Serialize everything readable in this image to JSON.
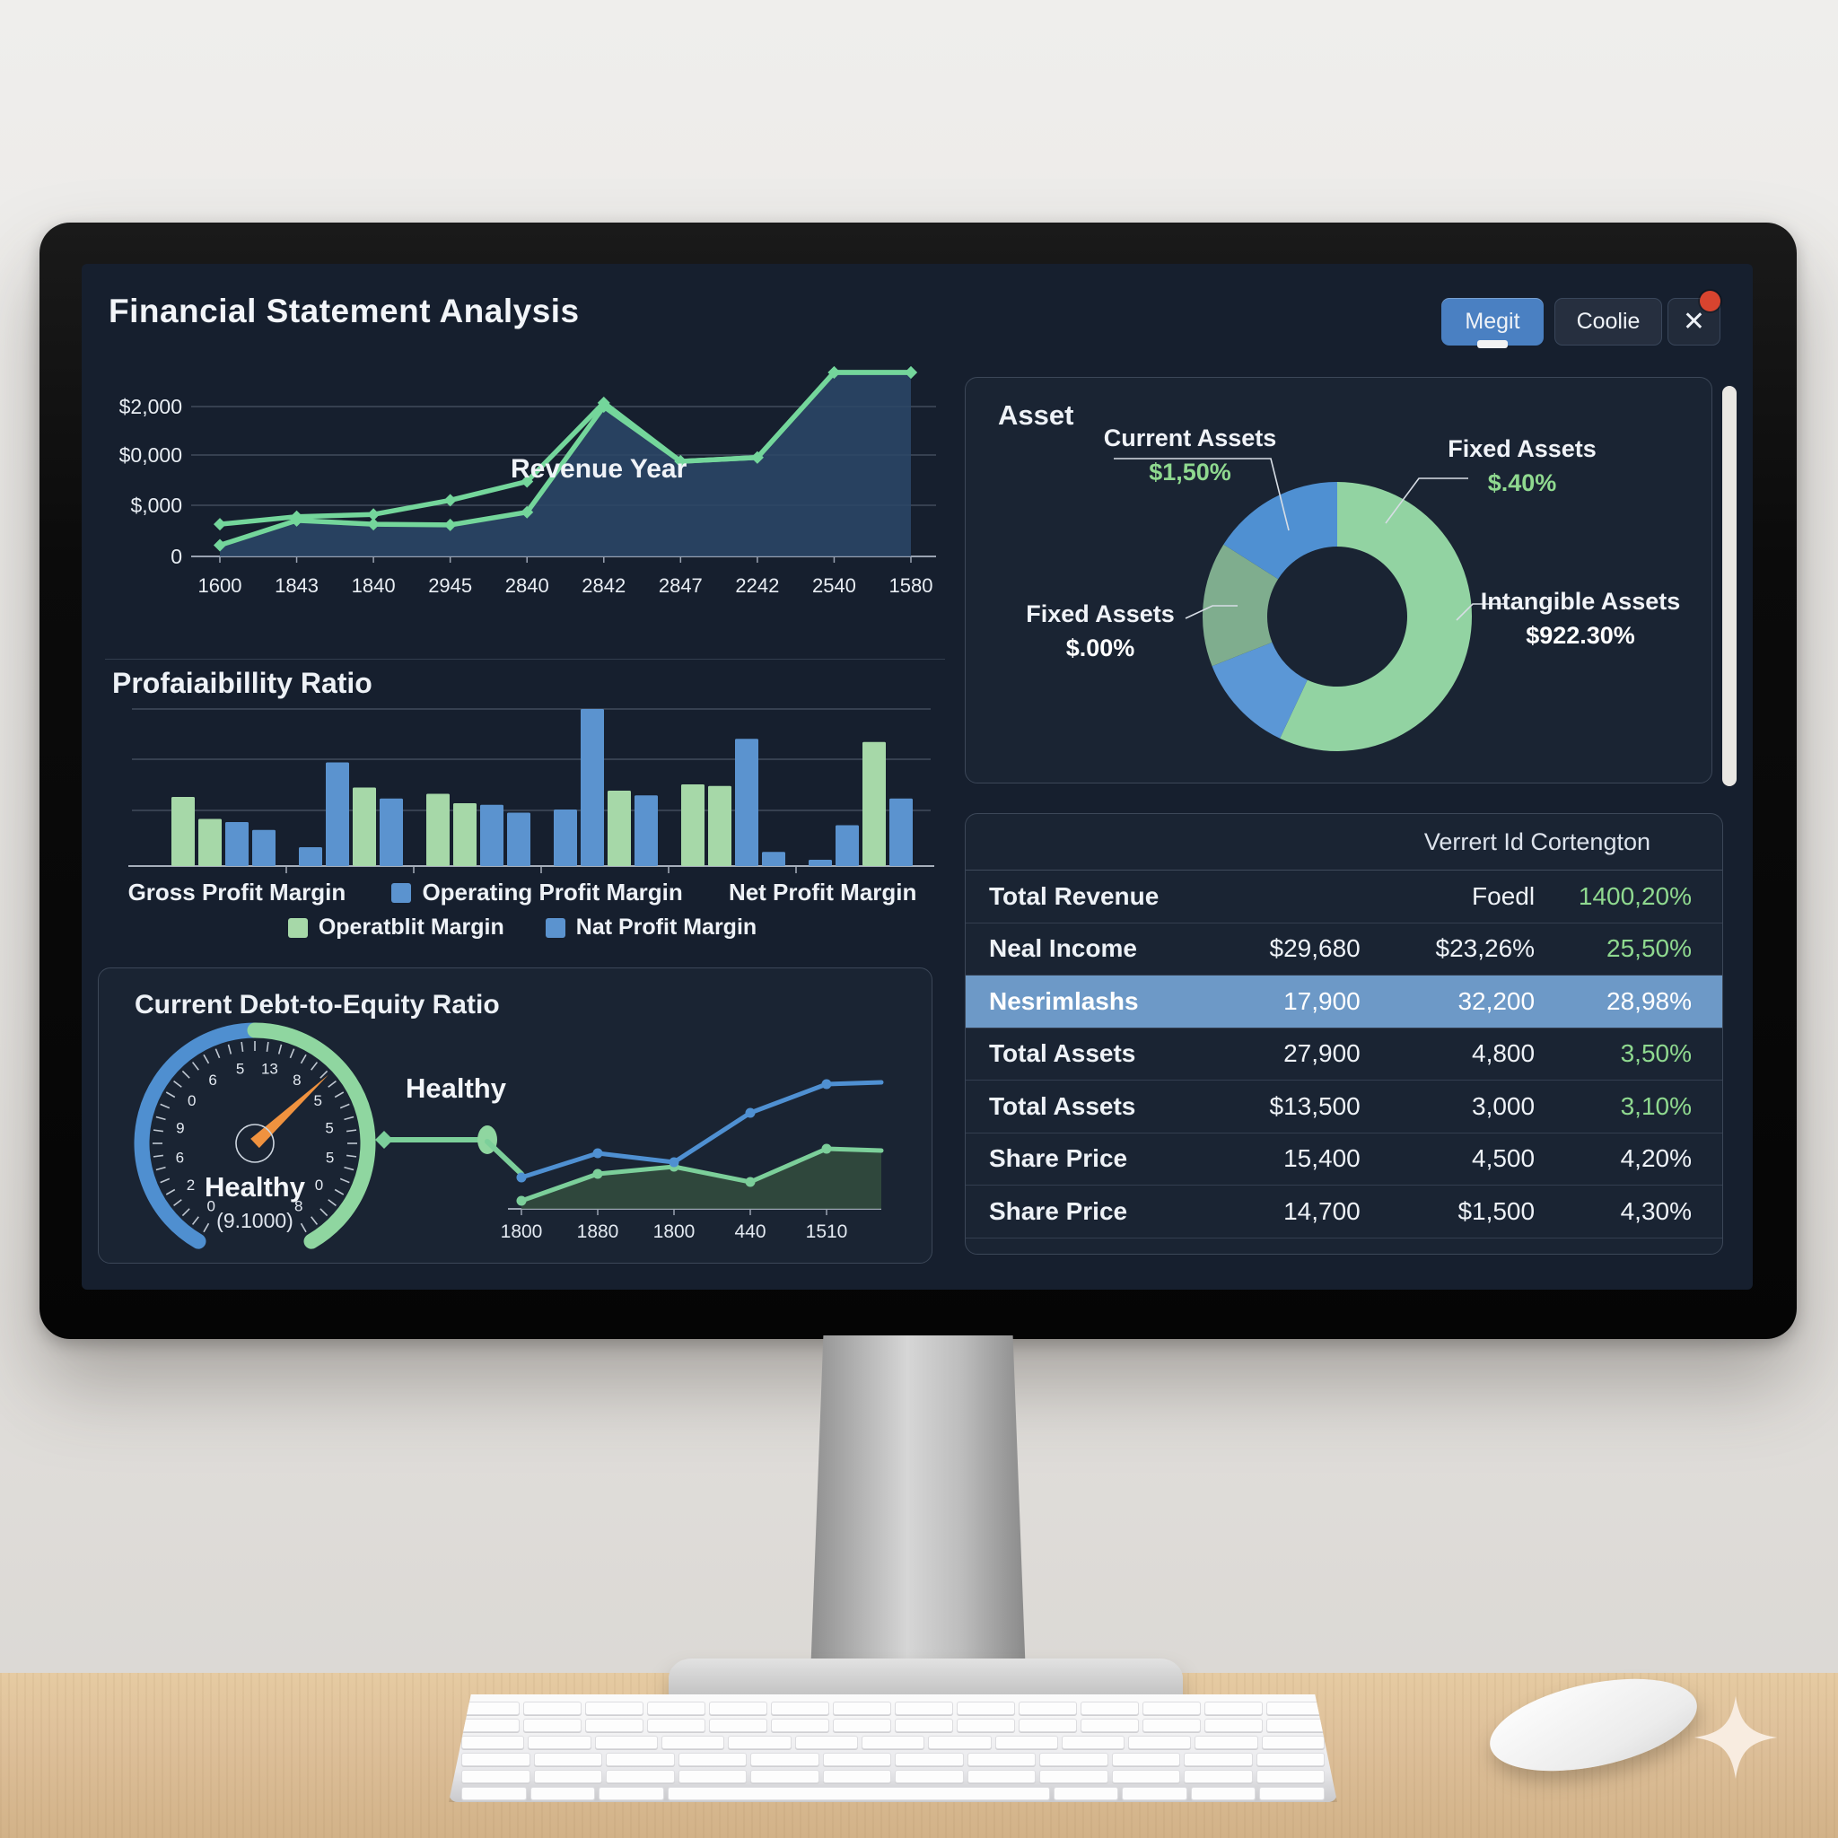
{
  "window": {
    "title": "Financial Statement Analysis"
  },
  "toolbar": {
    "buttons": [
      {
        "label": "Megit",
        "active": true
      },
      {
        "label": "Coolie",
        "active": false
      }
    ],
    "close_label": "✕"
  },
  "chart_data": [
    {
      "id": "revenue",
      "type": "area",
      "title": "Revenue Year",
      "categories": [
        "1600",
        "1843",
        "1840",
        "2945",
        "2840",
        "2842",
        "2847",
        "2242",
        "2540",
        "1580"
      ],
      "y_ticks": [
        {
          "label": "$2,000",
          "value": 2000
        },
        {
          "label": "$0,000",
          "value": 1333
        },
        {
          "label": "$,000",
          "value": 667
        },
        {
          "label": "0",
          "value": 0
        }
      ],
      "ylim": [
        0,
        2700
      ],
      "grid": true,
      "legend_position": "none",
      "series": [
        {
          "name": "revenue-upper-line",
          "color": "#74d69b",
          "values": [
            430,
            530,
            560,
            750,
            1000,
            2050,
            1270,
            1320,
            2620,
            2550
          ]
        },
        {
          "name": "revenue-lower-area",
          "color": "#74d69b",
          "area_fill": "#2c4868",
          "values": [
            150,
            480,
            430,
            420,
            590,
            2000,
            1270,
            1320,
            2620,
            2550
          ]
        }
      ]
    },
    {
      "id": "profitability",
      "type": "bar",
      "title": "Profaiaibillity Ratio",
      "ylim": [
        0,
        100
      ],
      "grid": true,
      "axis_labels": [
        {
          "label": "Gross Profit Margin",
          "swatch": null
        },
        {
          "label": "Operating Profit Margin",
          "swatch": "#5b93cf"
        },
        {
          "label": "Net Profit Margin",
          "swatch": null
        }
      ],
      "legend": [
        {
          "label": "Operatblit Margin",
          "swatch": "#a6d8a8"
        },
        {
          "label": "Nat Profit Margin",
          "swatch": "#5b93cf"
        }
      ],
      "colors": {
        "green": "#a6d8a8",
        "blue": "#5b93cf"
      },
      "groups": [
        [
          {
            "color": "green",
            "value": 44
          },
          {
            "color": "green",
            "value": 30
          },
          {
            "color": "blue",
            "value": 28
          },
          {
            "color": "blue",
            "value": 23
          }
        ],
        [
          {
            "color": "blue",
            "value": 12
          },
          {
            "color": "blue",
            "value": 66
          },
          {
            "color": "green",
            "value": 50
          },
          {
            "color": "blue",
            "value": 43
          }
        ],
        [
          {
            "color": "green",
            "value": 46
          },
          {
            "color": "green",
            "value": 40
          },
          {
            "color": "blue",
            "value": 39
          },
          {
            "color": "blue",
            "value": 34
          }
        ],
        [
          {
            "color": "blue",
            "value": 36
          },
          {
            "color": "blue",
            "value": 100
          },
          {
            "color": "green",
            "value": 48
          },
          {
            "color": "blue",
            "value": 45
          }
        ],
        [
          {
            "color": "green",
            "value": 52
          },
          {
            "color": "green",
            "value": 51
          },
          {
            "color": "blue",
            "value": 81
          },
          {
            "color": "blue",
            "value": 9
          }
        ],
        [
          {
            "color": "blue",
            "value": 4
          },
          {
            "color": "blue",
            "value": 26
          },
          {
            "color": "green",
            "value": 79
          },
          {
            "color": "blue",
            "value": 43
          }
        ]
      ]
    },
    {
      "id": "gauge",
      "type": "gauge",
      "title": "Current Debt-to-Equity Ratio",
      "status_label": "Healthy",
      "status_sublabel": "(9.1000)",
      "annotation": "Healthy",
      "needle_angle_deg": 47,
      "tick_digits": [
        "0",
        "2",
        "6",
        "9",
        "0",
        "6",
        "5",
        "13",
        "8",
        "5",
        "5",
        "5",
        "0",
        "8"
      ],
      "arc_colors": {
        "left": "#4f8fd0",
        "right": "#8fd6a0"
      },
      "needle_color": "#f0923f"
    },
    {
      "id": "trend",
      "type": "line",
      "categories": [
        "1800",
        "1880",
        "1800",
        "440",
        "1510"
      ],
      "ylim": [
        0,
        160
      ],
      "series": [
        {
          "name": "trend-blue",
          "color": "#4f90d2",
          "values": [
            35,
            62,
            52,
            107,
            139
          ]
        },
        {
          "name": "trend-green",
          "color": "#7ccf9a",
          "area_fill": "#35503f",
          "values": [
            9,
            39,
            47,
            30,
            67
          ]
        }
      ]
    },
    {
      "id": "asset",
      "type": "pie",
      "title": "Asset",
      "donut_hole_ratio": 0.52,
      "slices": [
        {
          "label": "Fixed / Intangible Assets",
          "color": "#92d3a2",
          "share": 57
        },
        {
          "label": "Current Assets",
          "color": "#5b97d6",
          "share": 12
        },
        {
          "label": "Fixed Assets",
          "color": "#7fad8e",
          "share": 15
        },
        {
          "label": "Current Assets",
          "color": "#4f90d2",
          "share": 16
        }
      ],
      "callouts": [
        {
          "label": "Current Assets",
          "value": "$1,50%",
          "value_color": "#8fd98f"
        },
        {
          "label": "Fixed Assets",
          "value": "$.40%",
          "value_color": "#8fd98f"
        },
        {
          "label": "Fixed Assets",
          "value": "$.00%",
          "value_color": "#ffffff"
        },
        {
          "label": "Intangible Assets",
          "value": "$922.30%",
          "value_color": "#ffffff"
        }
      ]
    }
  ],
  "table": {
    "header": "Verrert Id Cortengton",
    "rows": [
      {
        "cells": [
          "Total Revenue",
          "",
          "Foedl",
          "1400,20%"
        ],
        "value_color": "green",
        "highlight": false
      },
      {
        "cells": [
          "Neal Income",
          "$29,680",
          "$23,26%",
          "25,50%"
        ],
        "value_color": "green",
        "highlight": false
      },
      {
        "cells": [
          "Nesrimlashs",
          "17,900",
          "32,200",
          "28,98%"
        ],
        "value_color": "white",
        "highlight": true
      },
      {
        "cells": [
          "Total Assets",
          "27,900",
          "4,800",
          "3,50%"
        ],
        "value_color": "green",
        "highlight": false
      },
      {
        "cells": [
          "Total Assets",
          "$13,500",
          "3,000",
          "3,10%"
        ],
        "value_color": "green",
        "highlight": false
      },
      {
        "cells": [
          "Share Price",
          "15,400",
          "4,500",
          "4,20%"
        ],
        "value_color": "white",
        "highlight": false
      },
      {
        "cells": [
          "Share Price",
          "14,700",
          "$1,500",
          "4,30%"
        ],
        "value_color": "white",
        "highlight": false
      }
    ]
  },
  "colors": {
    "accent_blue": "#4f8fd0",
    "accent_green": "#8fd6a0",
    "positive_green": "#8fd98f",
    "screen_bg": "#161f2e",
    "panel_border": "#3c4758",
    "highlight_row": "#6d99c7"
  }
}
